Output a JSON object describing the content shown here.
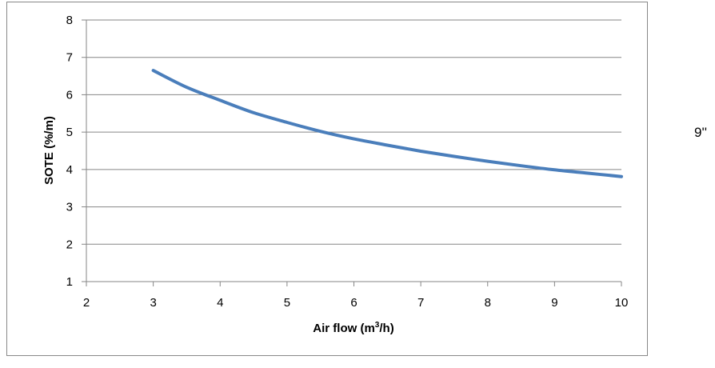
{
  "chart_data": {
    "type": "line",
    "title": "",
    "xlabel": "Air flow (m",
    "xlabel_sup": "3",
    "xlabel_tail": "/h)",
    "ylabel": "SOTE (%/m)",
    "xlim": [
      2,
      10
    ],
    "ylim": [
      1,
      8
    ],
    "x_ticks": [
      "2",
      "3",
      "4",
      "5",
      "6",
      "7",
      "8",
      "9",
      "10"
    ],
    "y_ticks": [
      "1",
      "2",
      "3",
      "4",
      "5",
      "6",
      "7",
      "8"
    ],
    "grid": "horizontal",
    "series": [
      {
        "color": "#4a7ebb",
        "x": [
          3,
          3.5,
          4,
          4.5,
          5,
          5.5,
          6,
          6.5,
          7,
          7.5,
          8,
          8.5,
          9,
          9.5,
          10
        ],
        "y": [
          6.65,
          6.2,
          5.85,
          5.52,
          5.26,
          5.02,
          4.82,
          4.65,
          4.49,
          4.35,
          4.22,
          4.1,
          3.99,
          3.9,
          3.81
        ]
      }
    ]
  },
  "side_label": "9''"
}
